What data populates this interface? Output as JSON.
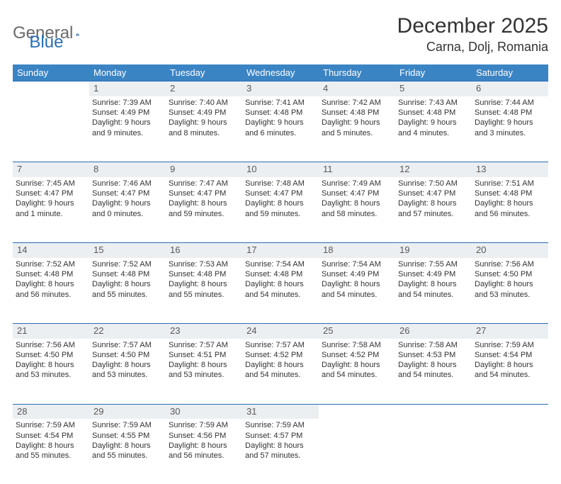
{
  "brand": {
    "word1": "General",
    "word2": "Blue",
    "logo_color": "#2a6db5"
  },
  "title": "December 2025",
  "location": "Carna, Dolj, Romania",
  "colors": {
    "header_bg": "#3b84c4",
    "header_fg": "#ffffff",
    "daynum_bg": "#eceff1",
    "daynum_fg": "#585858",
    "rule": "#2a6db5",
    "text": "#333333",
    "background": "#ffffff"
  },
  "typography": {
    "title_fontsize": 30,
    "location_fontsize": 18,
    "weekday_fontsize": 13,
    "daynum_fontsize": 13,
    "body_fontsize": 11
  },
  "weekdays": [
    "Sunday",
    "Monday",
    "Tuesday",
    "Wednesday",
    "Thursday",
    "Friday",
    "Saturday"
  ],
  "weeks": [
    [
      null,
      {
        "n": "1",
        "sunrise": "7:39 AM",
        "sunset": "4:49 PM",
        "daylight": "9 hours and 9 minutes."
      },
      {
        "n": "2",
        "sunrise": "7:40 AM",
        "sunset": "4:49 PM",
        "daylight": "9 hours and 8 minutes."
      },
      {
        "n": "3",
        "sunrise": "7:41 AM",
        "sunset": "4:48 PM",
        "daylight": "9 hours and 6 minutes."
      },
      {
        "n": "4",
        "sunrise": "7:42 AM",
        "sunset": "4:48 PM",
        "daylight": "9 hours and 5 minutes."
      },
      {
        "n": "5",
        "sunrise": "7:43 AM",
        "sunset": "4:48 PM",
        "daylight": "9 hours and 4 minutes."
      },
      {
        "n": "6",
        "sunrise": "7:44 AM",
        "sunset": "4:48 PM",
        "daylight": "9 hours and 3 minutes."
      }
    ],
    [
      {
        "n": "7",
        "sunrise": "7:45 AM",
        "sunset": "4:47 PM",
        "daylight": "9 hours and 1 minute."
      },
      {
        "n": "8",
        "sunrise": "7:46 AM",
        "sunset": "4:47 PM",
        "daylight": "9 hours and 0 minutes."
      },
      {
        "n": "9",
        "sunrise": "7:47 AM",
        "sunset": "4:47 PM",
        "daylight": "8 hours and 59 minutes."
      },
      {
        "n": "10",
        "sunrise": "7:48 AM",
        "sunset": "4:47 PM",
        "daylight": "8 hours and 59 minutes."
      },
      {
        "n": "11",
        "sunrise": "7:49 AM",
        "sunset": "4:47 PM",
        "daylight": "8 hours and 58 minutes."
      },
      {
        "n": "12",
        "sunrise": "7:50 AM",
        "sunset": "4:47 PM",
        "daylight": "8 hours and 57 minutes."
      },
      {
        "n": "13",
        "sunrise": "7:51 AM",
        "sunset": "4:48 PM",
        "daylight": "8 hours and 56 minutes."
      }
    ],
    [
      {
        "n": "14",
        "sunrise": "7:52 AM",
        "sunset": "4:48 PM",
        "daylight": "8 hours and 56 minutes."
      },
      {
        "n": "15",
        "sunrise": "7:52 AM",
        "sunset": "4:48 PM",
        "daylight": "8 hours and 55 minutes."
      },
      {
        "n": "16",
        "sunrise": "7:53 AM",
        "sunset": "4:48 PM",
        "daylight": "8 hours and 55 minutes."
      },
      {
        "n": "17",
        "sunrise": "7:54 AM",
        "sunset": "4:48 PM",
        "daylight": "8 hours and 54 minutes."
      },
      {
        "n": "18",
        "sunrise": "7:54 AM",
        "sunset": "4:49 PM",
        "daylight": "8 hours and 54 minutes."
      },
      {
        "n": "19",
        "sunrise": "7:55 AM",
        "sunset": "4:49 PM",
        "daylight": "8 hours and 54 minutes."
      },
      {
        "n": "20",
        "sunrise": "7:56 AM",
        "sunset": "4:50 PM",
        "daylight": "8 hours and 53 minutes."
      }
    ],
    [
      {
        "n": "21",
        "sunrise": "7:56 AM",
        "sunset": "4:50 PM",
        "daylight": "8 hours and 53 minutes."
      },
      {
        "n": "22",
        "sunrise": "7:57 AM",
        "sunset": "4:50 PM",
        "daylight": "8 hours and 53 minutes."
      },
      {
        "n": "23",
        "sunrise": "7:57 AM",
        "sunset": "4:51 PM",
        "daylight": "8 hours and 53 minutes."
      },
      {
        "n": "24",
        "sunrise": "7:57 AM",
        "sunset": "4:52 PM",
        "daylight": "8 hours and 54 minutes."
      },
      {
        "n": "25",
        "sunrise": "7:58 AM",
        "sunset": "4:52 PM",
        "daylight": "8 hours and 54 minutes."
      },
      {
        "n": "26",
        "sunrise": "7:58 AM",
        "sunset": "4:53 PM",
        "daylight": "8 hours and 54 minutes."
      },
      {
        "n": "27",
        "sunrise": "7:59 AM",
        "sunset": "4:54 PM",
        "daylight": "8 hours and 54 minutes."
      }
    ],
    [
      {
        "n": "28",
        "sunrise": "7:59 AM",
        "sunset": "4:54 PM",
        "daylight": "8 hours and 55 minutes."
      },
      {
        "n": "29",
        "sunrise": "7:59 AM",
        "sunset": "4:55 PM",
        "daylight": "8 hours and 55 minutes."
      },
      {
        "n": "30",
        "sunrise": "7:59 AM",
        "sunset": "4:56 PM",
        "daylight": "8 hours and 56 minutes."
      },
      {
        "n": "31",
        "sunrise": "7:59 AM",
        "sunset": "4:57 PM",
        "daylight": "8 hours and 57 minutes."
      },
      null,
      null,
      null
    ]
  ],
  "labels": {
    "sunrise": "Sunrise:",
    "sunset": "Sunset:",
    "daylight": "Daylight:"
  }
}
